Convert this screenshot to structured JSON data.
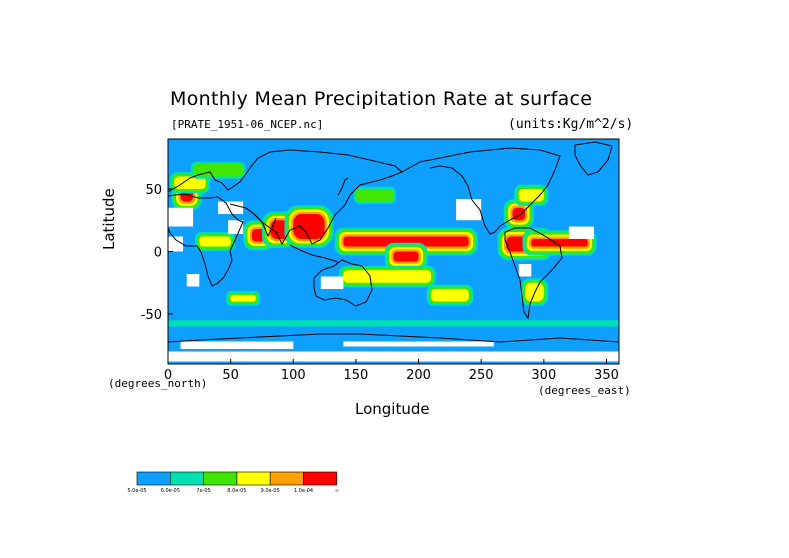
{
  "title": "Monthly Mean Precipitation Rate at surface",
  "file_label": "[PRATE_1951-06_NCEP.nc]",
  "units_label": "(units:Kg/m^2/s)",
  "axes": {
    "x_label": "Longitude",
    "y_label": "Latitude",
    "x_unit": "(degrees_north)",
    "y_unit": "(degrees_east)",
    "x_range": [
      0,
      360
    ],
    "y_range": [
      -90,
      90
    ],
    "x_ticks": [
      0,
      50,
      100,
      150,
      200,
      250,
      300,
      350
    ],
    "y_ticks": [
      50,
      0,
      -50
    ]
  },
  "colors": {
    "ocean_low": "#0f9fff",
    "coast": "#000000"
  },
  "colorbar": {
    "colors": [
      "#0f9fff",
      "#00e1b3",
      "#41e600",
      "#ffff00",
      "#ff9f00",
      "#ff0000"
    ],
    "labels": [
      "5.0e-05",
      "6.0e-05",
      "7e-05",
      "8.0e-05",
      "9.0e-05",
      "1.0e-04",
      "∞"
    ]
  },
  "precip_regions": [
    {
      "level": 5,
      "lon": [
        140,
        240
      ],
      "lat": [
        4,
        12
      ]
    },
    {
      "level": 5,
      "lon": [
        67,
        78
      ],
      "lat": [
        8,
        18
      ]
    },
    {
      "level": 5,
      "lon": [
        82,
        96
      ],
      "lat": [
        10,
        25
      ]
    },
    {
      "level": 5,
      "lon": [
        100,
        125
      ],
      "lat": [
        10,
        30
      ]
    },
    {
      "level": 5,
      "lon": [
        270,
        300
      ],
      "lat": [
        0,
        12
      ]
    },
    {
      "level": 5,
      "lon": [
        290,
        335
      ],
      "lat": [
        4,
        10
      ]
    },
    {
      "level": 5,
      "lon": [
        275,
        285
      ],
      "lat": [
        25,
        35
      ]
    },
    {
      "level": 5,
      "lon": [
        10,
        20
      ],
      "lat": [
        40,
        50
      ]
    },
    {
      "level": 5,
      "lon": [
        180,
        200
      ],
      "lat": [
        -8,
        0
      ]
    },
    {
      "level": 3,
      "lon": [
        25,
        50
      ],
      "lat": [
        4,
        12
      ]
    },
    {
      "level": 3,
      "lon": [
        140,
        210
      ],
      "lat": [
        -25,
        -15
      ]
    },
    {
      "level": 3,
      "lon": [
        210,
        240
      ],
      "lat": [
        -40,
        -30
      ]
    },
    {
      "level": 3,
      "lon": [
        50,
        70
      ],
      "lat": [
        -40,
        -35
      ]
    },
    {
      "level": 3,
      "lon": [
        285,
        300
      ],
      "lat": [
        -40,
        -25
      ]
    },
    {
      "level": 3,
      "lon": [
        280,
        300
      ],
      "lat": [
        40,
        50
      ]
    },
    {
      "level": 3,
      "lon": [
        5,
        30
      ],
      "lat": [
        50,
        60
      ]
    },
    {
      "level": 2,
      "lon": [
        150,
        180
      ],
      "lat": [
        40,
        50
      ]
    },
    {
      "level": 2,
      "lon": [
        20,
        60
      ],
      "lat": [
        60,
        70
      ]
    },
    {
      "level": 1,
      "lon": [
        0,
        360
      ],
      "lat": [
        -60,
        -55
      ]
    }
  ],
  "missing_cells": [
    {
      "lon": [
        0,
        20
      ],
      "lat": [
        20,
        35
      ]
    },
    {
      "lon": [
        40,
        60
      ],
      "lat": [
        30,
        40
      ]
    },
    {
      "lon": [
        48,
        60
      ],
      "lat": [
        14,
        25
      ]
    },
    {
      "lon": [
        230,
        250
      ],
      "lat": [
        25,
        42
      ]
    },
    {
      "lon": [
        0,
        12
      ],
      "lat": [
        0,
        12
      ]
    },
    {
      "lon": [
        320,
        340
      ],
      "lat": [
        10,
        20
      ]
    },
    {
      "lon": [
        122,
        140
      ],
      "lat": [
        -30,
        -20
      ]
    },
    {
      "lon": [
        15,
        25
      ],
      "lat": [
        -28,
        -18
      ]
    },
    {
      "lon": [
        280,
        290
      ],
      "lat": [
        -20,
        -10
      ]
    },
    {
      "lon": [
        0,
        360
      ],
      "lat": [
        -88,
        -80
      ]
    },
    {
      "lon": [
        10,
        100
      ],
      "lat": [
        -78,
        -72
      ]
    },
    {
      "lon": [
        140,
        260
      ],
      "lat": [
        -76,
        -72
      ]
    }
  ]
}
